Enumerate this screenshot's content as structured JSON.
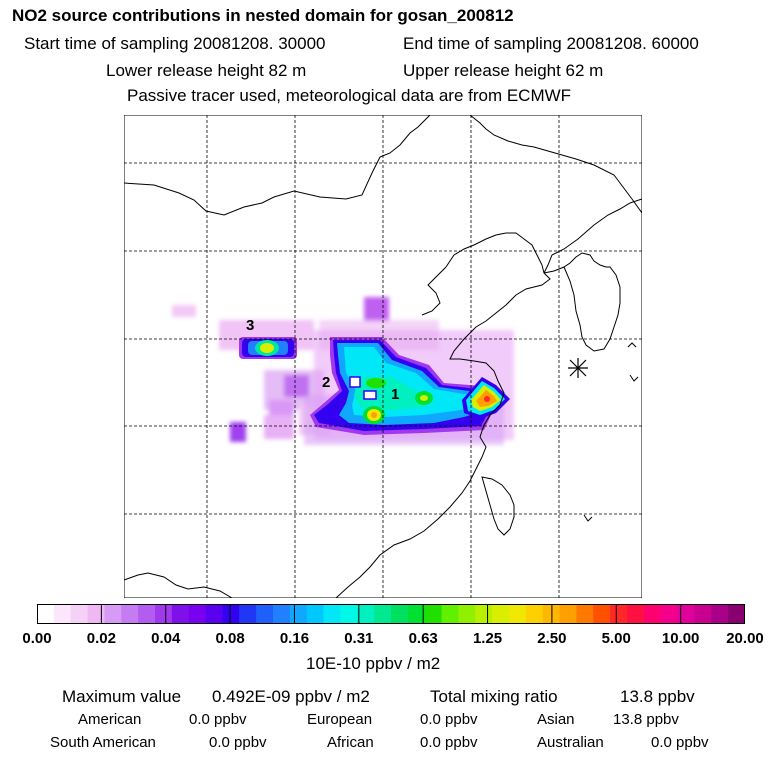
{
  "header": {
    "title": "NO2 source contributions in nested domain for gosan_200812",
    "start_time": "Start time of sampling 20081208. 30000",
    "end_time": "End time of sampling 20081208. 60000",
    "lower_height": "Lower release height   82 m",
    "upper_height": "Upper release height   62 m",
    "tracer_note": "Passive tracer used, meteorological data are from ECMWF"
  },
  "map": {
    "labels": [
      "1",
      "2",
      "3"
    ],
    "receptor_marker": "asterisk-station-marker"
  },
  "colorbar": {
    "ticks": [
      "0.00",
      "0.02",
      "0.04",
      "0.08",
      "0.16",
      "0.31",
      "0.63",
      "1.25",
      "2.50",
      "5.00",
      "10.00",
      "20.00"
    ],
    "colors": [
      "#ffffff",
      "#fbe6fb",
      "#f5d0f7",
      "#efb8f5",
      "#d79af5",
      "#c57cf3",
      "#b35cf0",
      "#a038ed",
      "#8010ea",
      "#7a00f0",
      "#5a00f0",
      "#3400f0",
      "#2038f5",
      "#2060fa",
      "#2080ff",
      "#10a8ff",
      "#00c8ff",
      "#00e8f8",
      "#00f8e8",
      "#00f0c0",
      "#00e890",
      "#00e060",
      "#00e030",
      "#20e000",
      "#60f000",
      "#90f000",
      "#b8f000",
      "#d8f000",
      "#f0e800",
      "#ffd000",
      "#ffb800",
      "#ffa000",
      "#ff7800",
      "#ff5000",
      "#ff2828",
      "#ff1040",
      "#ff0070",
      "#f5008c",
      "#e0009c",
      "#c80090",
      "#a80088",
      "#880070"
    ],
    "unit": "10E-10 ppbv / m2"
  },
  "summary": {
    "max_label": "Maximum value",
    "max_value": "0.492E-09 ppbv / m2",
    "total_label": "Total mixing ratio",
    "total_value": "13.8 ppbv",
    "regions": [
      {
        "name": "American",
        "value": "0.0 ppbv"
      },
      {
        "name": "European",
        "value": "0.0 ppbv"
      },
      {
        "name": "Asian",
        "value": "13.8 ppbv"
      },
      {
        "name": "South American",
        "value": "0.0 ppbv"
      },
      {
        "name": "African",
        "value": "0.0 ppbv"
      },
      {
        "name": "Australian",
        "value": "0.0 ppbv"
      }
    ]
  }
}
